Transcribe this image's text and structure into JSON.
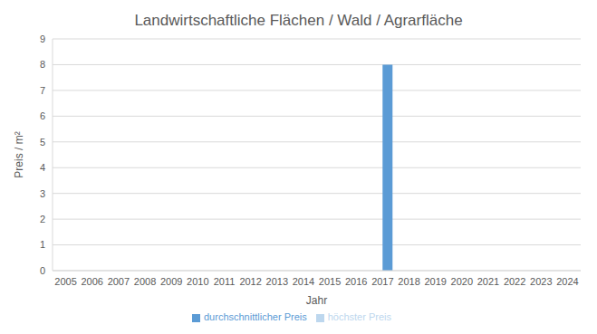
{
  "chart_data": {
    "type": "bar",
    "title": "Landwirtschaftliche Flächen / Wald / Agrarfläche",
    "x_label": "Jahr",
    "y_label": "Preis / m²",
    "categories": [
      "2005",
      "2006",
      "2007",
      "2008",
      "2009",
      "2010",
      "2011",
      "2012",
      "2013",
      "2014",
      "2015",
      "2016",
      "2017",
      "2018",
      "2019",
      "2020",
      "2021",
      "2022",
      "2023",
      "2024"
    ],
    "series": [
      {
        "name": "höchster Preis",
        "color": "#bdd7ee",
        "values": [
          null,
          null,
          null,
          null,
          null,
          null,
          null,
          null,
          null,
          null,
          null,
          null,
          null,
          null,
          null,
          null,
          null,
          null,
          null,
          null
        ]
      },
      {
        "name": "durchschnittlicher Preis",
        "color": "#5b9bd5",
        "values": [
          null,
          null,
          null,
          null,
          null,
          null,
          null,
          null,
          null,
          null,
          null,
          null,
          8,
          null,
          null,
          null,
          null,
          null,
          null,
          null
        ]
      }
    ],
    "ylim": [
      0,
      9
    ],
    "yticks": [
      0,
      1,
      2,
      3,
      4,
      5,
      6,
      7,
      8,
      9
    ],
    "grid": true,
    "legend": "bottom"
  }
}
